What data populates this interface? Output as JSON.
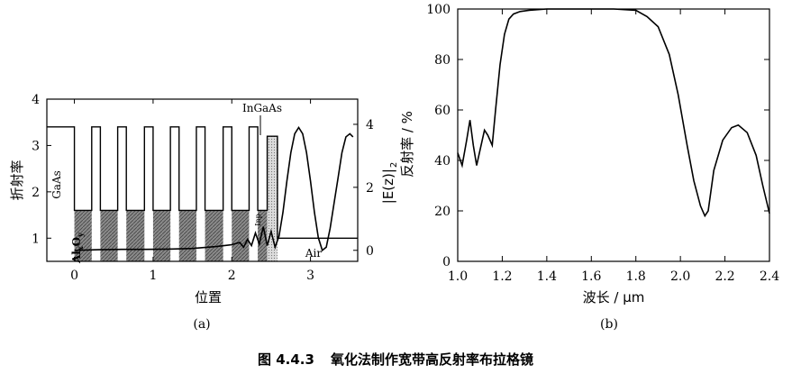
{
  "caption": {
    "number": "图 4.4.3",
    "title": "氧化法制作宽带高反射率布拉格镜"
  },
  "chart_data": [
    {
      "type": "line",
      "panel_label": "(a)",
      "xlabel": "位置",
      "ylabel_left": "折射率",
      "ylabel_right": "|E(z)|",
      "ylabel_right_sub": "2",
      "xlim": [
        -0.35,
        3.6
      ],
      "ylim_left": [
        0.5,
        4
      ],
      "ylim_right": [
        -0.35,
        4.8
      ],
      "x_ticks": [
        0,
        1,
        2,
        3
      ],
      "y_ticks_left": [
        1,
        2,
        3,
        4
      ],
      "y_ticks_right": [
        0,
        2,
        4
      ],
      "annotations": {
        "gaas": "GaAs",
        "alox_main": "Al",
        "alox_sub1": "x",
        "alox_o": "O",
        "alox_sub2": "y",
        "ingaas": "InGaAs",
        "inp": "Inp",
        "air": "Air"
      },
      "series": [
        {
          "role": "refractive_index_profile",
          "segments": [
            {
              "x0": -0.35,
              "x1": 0.0,
              "n": 3.4,
              "material": "GaAs"
            },
            {
              "x0": 0.0,
              "x1": 0.22,
              "n": 1.6,
              "material": "AlxOy",
              "hatched": true
            },
            {
              "x0": 0.22,
              "x1": 0.33,
              "n": 3.4,
              "material": "GaAs"
            },
            {
              "x0": 0.33,
              "x1": 0.55,
              "n": 1.6,
              "material": "AlxOy",
              "hatched": true
            },
            {
              "x0": 0.55,
              "x1": 0.66,
              "n": 3.4,
              "material": "GaAs"
            },
            {
              "x0": 0.66,
              "x1": 0.89,
              "n": 1.6,
              "material": "AlxOy",
              "hatched": true
            },
            {
              "x0": 0.89,
              "x1": 1.0,
              "n": 3.4,
              "material": "GaAs"
            },
            {
              "x0": 1.0,
              "x1": 1.22,
              "n": 1.6,
              "material": "AlxOy",
              "hatched": true
            },
            {
              "x0": 1.22,
              "x1": 1.33,
              "n": 3.4,
              "material": "GaAs"
            },
            {
              "x0": 1.33,
              "x1": 1.55,
              "n": 1.6,
              "material": "AlxOy",
              "hatched": true
            },
            {
              "x0": 1.55,
              "x1": 1.66,
              "n": 3.4,
              "material": "GaAs"
            },
            {
              "x0": 1.66,
              "x1": 1.89,
              "n": 1.6,
              "material": "AlxOy",
              "hatched": true
            },
            {
              "x0": 1.89,
              "x1": 2.0,
              "n": 3.4,
              "material": "GaAs"
            },
            {
              "x0": 2.0,
              "x1": 2.22,
              "n": 1.6,
              "material": "AlxOy",
              "hatched": true
            },
            {
              "x0": 2.22,
              "x1": 2.33,
              "n": 3.4,
              "material": "GaAs"
            },
            {
              "x0": 2.33,
              "x1": 2.45,
              "n": 1.6,
              "material": "AlxOy",
              "hatched": true
            },
            {
              "x0": 2.45,
              "x1": 2.58,
              "n": 3.2,
              "material": "InP",
              "dotted": true
            },
            {
              "x0": 2.58,
              "x1": 3.6,
              "n": 1.0,
              "material": "Air"
            }
          ]
        },
        {
          "role": "field_intensity",
          "axis": "right",
          "x": [
            0,
            0.3,
            0.6,
            0.9,
            1.2,
            1.5,
            1.8,
            2.0,
            2.1,
            2.15,
            2.2,
            2.25,
            2.3,
            2.35,
            2.4,
            2.45,
            2.5,
            2.55,
            2.6,
            2.65,
            2.7,
            2.75,
            2.8,
            2.85,
            2.9,
            2.95,
            3.0,
            3.05,
            3.1,
            3.15,
            3.2,
            3.25,
            3.3,
            3.35,
            3.4,
            3.45,
            3.5,
            3.54
          ],
          "y": [
            0.0,
            0.02,
            0.03,
            0.03,
            0.04,
            0.06,
            0.12,
            0.18,
            0.25,
            0.1,
            0.35,
            0.15,
            0.55,
            0.2,
            0.75,
            0.15,
            0.6,
            0.1,
            0.45,
            1.2,
            2.2,
            3.1,
            3.7,
            3.9,
            3.7,
            3.1,
            2.2,
            1.2,
            0.4,
            0.0,
            0.1,
            0.7,
            1.5,
            2.3,
            3.1,
            3.6,
            3.7,
            3.6
          ]
        }
      ]
    },
    {
      "type": "line",
      "panel_label": "(b)",
      "xlabel": "波长 / μm",
      "ylabel": "反射率 / %",
      "xlim": [
        1.0,
        2.4
      ],
      "ylim": [
        0,
        100
      ],
      "x_ticks": [
        1.0,
        1.2,
        1.4,
        1.6,
        1.8,
        2.0,
        2.2,
        2.4
      ],
      "x_tick_labels": [
        "1.0",
        "1.2",
        "1.4",
        "1.6",
        "1.8",
        "2.0",
        "2.2",
        "2.4"
      ],
      "y_ticks": [
        0,
        20,
        40,
        60,
        80,
        100
      ],
      "series": [
        {
          "role": "reflectivity",
          "x": [
            1.0,
            1.02,
            1.04,
            1.055,
            1.07,
            1.085,
            1.1,
            1.12,
            1.135,
            1.155,
            1.17,
            1.19,
            1.21,
            1.23,
            1.25,
            1.28,
            1.32,
            1.4,
            1.5,
            1.6,
            1.7,
            1.8,
            1.85,
            1.9,
            1.95,
            1.99,
            2.03,
            2.06,
            2.09,
            2.11,
            2.125,
            2.15,
            2.19,
            2.23,
            2.26,
            2.3,
            2.34,
            2.37,
            2.4
          ],
          "y": [
            43,
            38,
            48,
            56,
            46,
            38,
            44,
            52,
            50,
            46,
            60,
            78,
            90,
            96,
            98,
            99,
            99.5,
            100,
            100,
            100,
            100,
            99.5,
            97,
            93,
            82,
            66,
            46,
            32,
            22,
            18,
            20,
            36,
            48,
            53,
            54,
            51,
            42,
            30,
            19
          ]
        }
      ]
    }
  ]
}
